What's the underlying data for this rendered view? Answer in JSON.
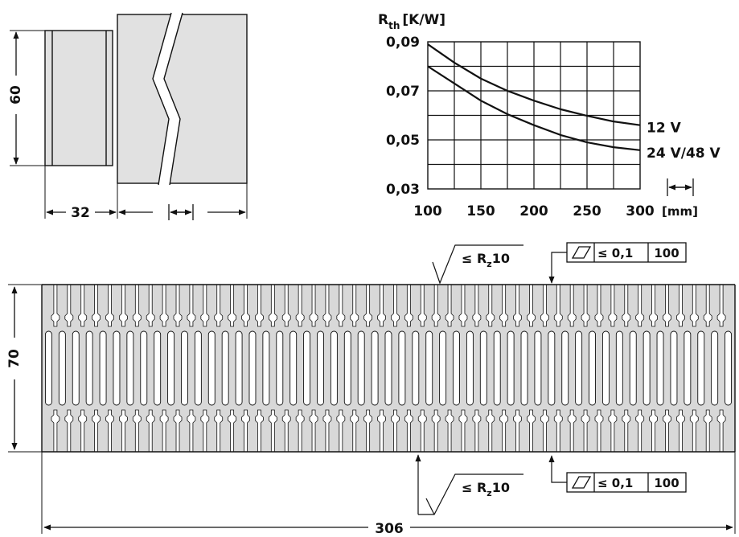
{
  "side_view": {
    "dim_height": "60",
    "dim_width": "32"
  },
  "chart_data": {
    "type": "line",
    "ylabel_main": "R",
    "ylabel_sub": "th",
    "ylabel_unit": "[K/W]",
    "xlabel": "[mm]",
    "x_ticks": [
      "100",
      "150",
      "200",
      "250",
      "300"
    ],
    "y_ticks": [
      "0,09",
      "0,07",
      "0,05",
      "0,03"
    ],
    "xlim": [
      100,
      300
    ],
    "ylim": [
      0.03,
      0.09
    ],
    "grid": true,
    "series": [
      {
        "name": "12 V",
        "x": [
          100,
          125,
          150,
          175,
          200,
          225,
          250,
          275,
          300
        ],
        "y": [
          0.089,
          0.0815,
          0.075,
          0.07,
          0.066,
          0.0625,
          0.0598,
          0.0575,
          0.056
        ]
      },
      {
        "name": "24 V/48 V",
        "x": [
          100,
          125,
          150,
          175,
          200,
          225,
          250,
          275,
          300
        ],
        "y": [
          0.08,
          0.073,
          0.066,
          0.0605,
          0.056,
          0.052,
          0.049,
          0.047,
          0.0458
        ]
      }
    ]
  },
  "profile": {
    "dim_height": "70",
    "dim_width": "306",
    "fin_count": 51,
    "roughness_top": {
      "symbol": "≤ R",
      "sub": "z",
      "value": "10"
    },
    "roughness_bottom": {
      "symbol": "≤ R",
      "sub": "z",
      "value": "10"
    },
    "flatness_top": {
      "tolerance": "≤ 0,1",
      "length": "100"
    },
    "flatness_bottom": {
      "tolerance": "≤ 0,1",
      "length": "100"
    }
  }
}
